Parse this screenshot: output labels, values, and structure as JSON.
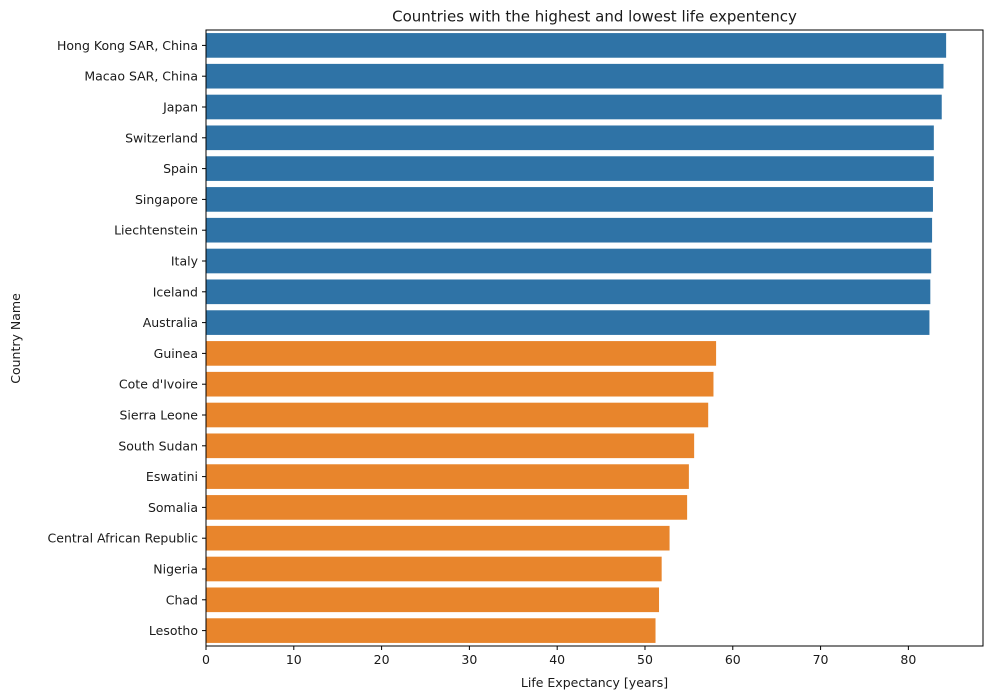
{
  "chart_data": {
    "type": "bar",
    "orientation": "horizontal",
    "title": "Countries with the highest and lowest life expentency",
    "xlabel": "Life Expectancy [years]",
    "ylabel": "Country Name",
    "xlim": [
      0,
      88.5
    ],
    "xticks": [
      0,
      10,
      20,
      30,
      40,
      50,
      60,
      70,
      80
    ],
    "grid": false,
    "categories": [
      "Hong Kong SAR, China",
      "Macao SAR, China",
      "Japan",
      "Switzerland",
      "Spain",
      "Singapore",
      "Liechtenstein",
      "Italy",
      "Iceland",
      "Australia",
      "Guinea",
      "Cote d'Ivoire",
      "Sierra Leone",
      "South Sudan",
      "Eswatini",
      "Somalia",
      "Central African Republic",
      "Nigeria",
      "Chad",
      "Lesotho"
    ],
    "values": [
      84.3,
      84.0,
      83.8,
      82.9,
      82.9,
      82.8,
      82.7,
      82.6,
      82.5,
      82.4,
      58.1,
      57.8,
      57.2,
      55.6,
      55.0,
      54.8,
      52.8,
      51.9,
      51.6,
      51.2
    ],
    "group_colors": [
      "#2f73a6",
      "#e8852c",
      "#2f73a6"
    ],
    "bar_colors": [
      "#2f73a6",
      "#2f73a6",
      "#2f73a6",
      "#2f73a6",
      "#2f73a6",
      "#2f73a6",
      "#2f73a6",
      "#2f73a6",
      "#2f73a6",
      "#2f73a6",
      "#e8852c",
      "#e8852c",
      "#e8852c",
      "#e8852c",
      "#e8852c",
      "#e8852c",
      "#e8852c",
      "#e8852c",
      "#e8852c",
      "#e8852c"
    ]
  }
}
